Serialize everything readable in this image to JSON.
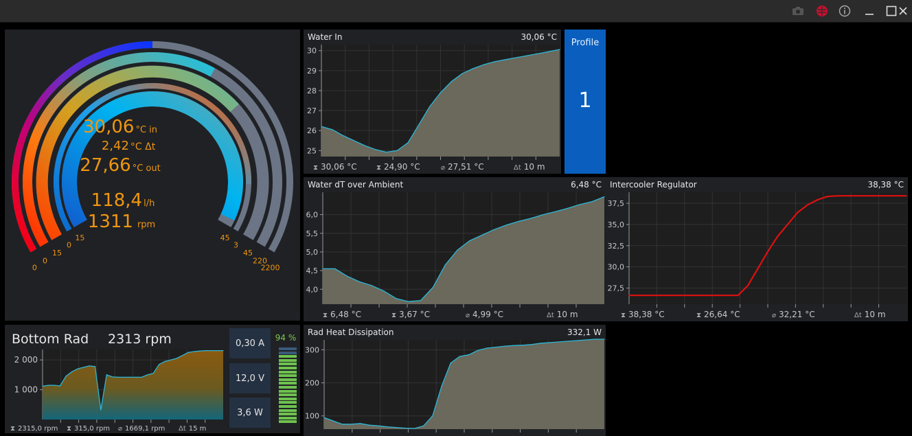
{
  "window": {
    "icons": [
      "camera-icon",
      "aquasuite-logo-icon",
      "info-icon",
      "minimize-icon",
      "maximize-icon",
      "close-icon"
    ]
  },
  "gauge": {
    "readouts": {
      "temp_in": "30,06",
      "temp_in_unit": "°C in",
      "delta": "2,42",
      "delta_unit": "°C Δt",
      "temp_out": "27,66",
      "temp_out_unit": "°C out",
      "flow": "118,4",
      "flow_unit": "l/h",
      "rpm": "1311",
      "rpm_unit": "rpm"
    },
    "scale_min": [
      "15",
      "0",
      "15",
      "0",
      "0"
    ],
    "scale_max": [
      "45",
      "3",
      "45",
      "220",
      "2200"
    ],
    "levels": [
      0.98,
      0.88,
      0.7,
      0.62,
      0.5
    ],
    "colors": {
      "accent": "#f0960f",
      "track": "#6b7585"
    }
  },
  "water_in": {
    "title": "Water In",
    "current": "30,06 °C",
    "stats": {
      "max": "30,06 °C",
      "min": "24,90 °C",
      "avg": "27,51 °C",
      "span": "10 m"
    },
    "chart_data": {
      "type": "area",
      "ylim": [
        24.7,
        30.3
      ],
      "yticks": [
        "25",
        "26",
        "27",
        "28",
        "29",
        "30"
      ],
      "values": [
        26.2,
        26.05,
        25.75,
        25.5,
        25.25,
        25.05,
        24.92,
        25.0,
        25.4,
        26.3,
        27.2,
        27.9,
        28.45,
        28.85,
        29.1,
        29.3,
        29.45,
        29.55,
        29.65,
        29.75,
        29.85,
        29.95,
        30.06
      ]
    }
  },
  "profile": {
    "label": "Profile",
    "value": "1"
  },
  "water_dt": {
    "title": "Water dT over Ambient",
    "current": "6,48 °C",
    "stats": {
      "max": "6,48 °C",
      "min": "3,67 °C",
      "avg": "4,99 °C",
      "span": "10 m"
    },
    "chart_data": {
      "type": "area",
      "ylim": [
        3.6,
        6.6
      ],
      "yticks": [
        "4,0",
        "4,5",
        "5,0",
        "5,5",
        "6,0"
      ],
      "values": [
        4.55,
        4.55,
        4.35,
        4.2,
        4.1,
        3.95,
        3.75,
        3.67,
        3.7,
        4.05,
        4.65,
        5.05,
        5.3,
        5.45,
        5.6,
        5.72,
        5.82,
        5.9,
        6.0,
        6.08,
        6.17,
        6.27,
        6.35,
        6.48
      ]
    }
  },
  "intercooler": {
    "title": "Intercooler Regulator",
    "current": "38,38 °C",
    "stats": {
      "max": "38,38 °C",
      "min": "26,64 °C",
      "avg": "32,21 °C",
      "span": "10 m"
    },
    "chart_data": {
      "type": "line",
      "ylim": [
        25.6,
        38.8
      ],
      "yticks": [
        "27,5",
        "30,0",
        "32,5",
        "35,0",
        "37,5"
      ],
      "color": "#e01010",
      "values": [
        26.64,
        26.64,
        26.64,
        26.64,
        26.64,
        26.64,
        26.64,
        26.64,
        26.64,
        26.64,
        26.64,
        26.64,
        27.8,
        29.8,
        31.8,
        33.6,
        35.0,
        36.4,
        37.3,
        37.9,
        38.3,
        38.38,
        38.38,
        38.38,
        38.38,
        38.38,
        38.38,
        38.38,
        38.38
      ]
    }
  },
  "bottom_rad": {
    "title": "Bottom Rad",
    "rpm": "2313 rpm",
    "stats": {
      "max": "2315,0 rpm",
      "min": "315,0 rpm",
      "avg": "1669,1 rpm",
      "span": "15 m"
    },
    "current_a": "0,30 A",
    "voltage": "12,0 V",
    "power": "3,6 W",
    "percent": "94 %",
    "level": 0.94,
    "chart_data": {
      "type": "area",
      "ylim": [
        0,
        2350
      ],
      "yticks": [
        "1 000",
        "2 000"
      ],
      "values": [
        1120,
        1150,
        1150,
        1130,
        1450,
        1600,
        1700,
        1750,
        1800,
        1780,
        320,
        1500,
        1430,
        1420,
        1420,
        1420,
        1420,
        1420,
        1500,
        1550,
        1850,
        1950,
        2000,
        2050,
        2150,
        2250,
        2280,
        2300,
        2313,
        2313,
        2313,
        2313
      ]
    }
  },
  "rad_heat": {
    "title": "Rad Heat Dissipation",
    "current": "332,1 W",
    "chart_data": {
      "type": "area",
      "ylim": [
        60,
        330
      ],
      "yticks": [
        "100",
        "200",
        "300"
      ],
      "values": [
        95,
        85,
        75,
        75,
        77,
        72,
        70,
        67,
        65,
        63,
        62,
        70,
        100,
        190,
        260,
        280,
        285,
        298,
        305,
        308,
        311,
        313,
        314,
        316,
        320,
        322,
        324,
        326,
        328,
        330,
        332,
        332
      ]
    }
  }
}
